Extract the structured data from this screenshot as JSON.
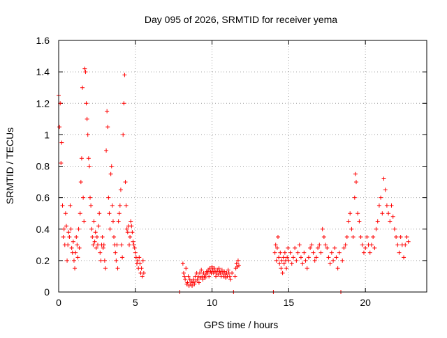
{
  "chart_data": {
    "type": "scatter",
    "title": "Day 095 of 2026, SRMTID for receiver yema",
    "xlabel": "GPS time / hours",
    "ylabel": "SRMTID / TECUs",
    "xlim": [
      0,
      24
    ],
    "ylim": [
      0,
      1.6
    ],
    "xticks": [
      0,
      5,
      10,
      15,
      20
    ],
    "xtick_labels": [
      "0",
      "5",
      "10",
      "15",
      "20"
    ],
    "yticks": [
      0,
      0.2,
      0.4,
      0.6,
      0.8,
      1.0,
      1.2,
      1.4,
      1.6
    ],
    "ytick_labels": [
      "0",
      "0.2",
      "0.4",
      "0.6",
      "0.8",
      "1",
      "1.2",
      "1.4",
      "1.6"
    ],
    "grid": true,
    "marker": "+",
    "series_color": "#ff0000",
    "series": [
      {
        "name": "SRMTID",
        "points": [
          [
            0.0,
            1.25
          ],
          [
            0.05,
            1.05
          ],
          [
            0.1,
            1.2
          ],
          [
            0.15,
            0.82
          ],
          [
            0.2,
            0.95
          ],
          [
            0.25,
            0.55
          ],
          [
            0.3,
            0.35
          ],
          [
            0.35,
            0.4
          ],
          [
            0.4,
            0.3
          ],
          [
            0.45,
            0.5
          ],
          [
            0.5,
            0.42
          ],
          [
            0.55,
            0.2
          ],
          [
            0.6,
            0.3
          ],
          [
            0.65,
            0.38
          ],
          [
            0.7,
            0.35
          ],
          [
            0.75,
            0.55
          ],
          [
            0.8,
            0.4
          ],
          [
            0.85,
            0.28
          ],
          [
            0.9,
            0.25
          ],
          [
            0.95,
            0.32
          ],
          [
            1.0,
            0.2
          ],
          [
            1.05,
            0.15
          ],
          [
            1.1,
            0.25
          ],
          [
            1.15,
            0.35
          ],
          [
            1.2,
            0.3
          ],
          [
            1.25,
            0.22
          ],
          [
            1.3,
            0.4
          ],
          [
            1.35,
            0.28
          ],
          [
            1.4,
            0.5
          ],
          [
            1.45,
            0.7
          ],
          [
            1.5,
            0.85
          ],
          [
            1.55,
            1.3
          ],
          [
            1.6,
            0.6
          ],
          [
            1.65,
            0.45
          ],
          [
            1.7,
            1.42
          ],
          [
            1.75,
            1.4
          ],
          [
            1.8,
            1.2
          ],
          [
            1.85,
            1.1
          ],
          [
            1.9,
            1.0
          ],
          [
            1.95,
            0.85
          ],
          [
            2.0,
            0.8
          ],
          [
            2.05,
            0.6
          ],
          [
            2.1,
            0.55
          ],
          [
            2.15,
            0.4
          ],
          [
            2.2,
            0.35
          ],
          [
            2.25,
            0.3
          ],
          [
            2.3,
            0.45
          ],
          [
            2.35,
            0.32
          ],
          [
            2.4,
            0.38
          ],
          [
            2.45,
            0.28
          ],
          [
            2.5,
            0.35
          ],
          [
            2.55,
            0.3
          ],
          [
            2.6,
            0.42
          ],
          [
            2.65,
            0.5
          ],
          [
            2.7,
            0.25
          ],
          [
            2.75,
            0.2
          ],
          [
            2.8,
            0.3
          ],
          [
            2.85,
            0.35
          ],
          [
            2.9,
            0.28
          ],
          [
            2.95,
            0.3
          ],
          [
            3.0,
            0.2
          ],
          [
            3.05,
            0.15
          ],
          [
            3.1,
            0.9
          ],
          [
            3.15,
            1.15
          ],
          [
            3.2,
            1.05
          ],
          [
            3.25,
            0.6
          ],
          [
            3.3,
            0.5
          ],
          [
            3.35,
            0.4
          ],
          [
            3.4,
            0.75
          ],
          [
            3.45,
            0.8
          ],
          [
            3.5,
            0.55
          ],
          [
            3.55,
            0.45
          ],
          [
            3.6,
            0.35
          ],
          [
            3.65,
            0.3
          ],
          [
            3.7,
            0.25
          ],
          [
            3.75,
            0.2
          ],
          [
            3.8,
            0.3
          ],
          [
            3.85,
            0.15
          ],
          [
            3.9,
            0.45
          ],
          [
            3.95,
            0.5
          ],
          [
            4.0,
            0.55
          ],
          [
            4.05,
            0.65
          ],
          [
            4.1,
            0.3
          ],
          [
            4.15,
            0.22
          ],
          [
            4.2,
            1.0
          ],
          [
            4.25,
            1.2
          ],
          [
            4.3,
            1.38
          ],
          [
            4.35,
            0.7
          ],
          [
            4.4,
            0.55
          ],
          [
            4.45,
            0.4
          ],
          [
            4.5,
            0.38
          ],
          [
            4.55,
            0.42
          ],
          [
            4.6,
            0.3
          ],
          [
            4.65,
            0.35
          ],
          [
            4.7,
            0.45
          ],
          [
            4.75,
            0.42
          ],
          [
            4.8,
            0.38
          ],
          [
            4.85,
            0.32
          ],
          [
            4.9,
            0.3
          ],
          [
            4.95,
            0.28
          ],
          [
            5.0,
            0.25
          ],
          [
            5.05,
            0.22
          ],
          [
            5.1,
            0.18
          ],
          [
            5.15,
            0.2
          ],
          [
            5.2,
            0.15
          ],
          [
            5.25,
            0.22
          ],
          [
            5.3,
            0.18
          ],
          [
            5.35,
            0.12
          ],
          [
            5.4,
            0.15
          ],
          [
            5.45,
            0.1
          ],
          [
            5.5,
            0.2
          ],
          [
            5.55,
            0.12
          ],
          [
            7.9,
            0.0
          ],
          [
            8.1,
            0.18
          ],
          [
            8.15,
            0.12
          ],
          [
            8.2,
            0.1
          ],
          [
            8.25,
            0.08
          ],
          [
            8.3,
            0.15
          ],
          [
            8.35,
            0.05
          ],
          [
            8.4,
            0.06
          ],
          [
            8.45,
            0.1
          ],
          [
            8.5,
            0.04
          ],
          [
            8.55,
            0.08
          ],
          [
            8.6,
            0.05
          ],
          [
            8.65,
            0.07
          ],
          [
            8.7,
            0.04
          ],
          [
            8.75,
            0.06
          ],
          [
            8.8,
            0.08
          ],
          [
            8.85,
            0.05
          ],
          [
            8.9,
            0.1
          ],
          [
            8.95,
            0.07
          ],
          [
            9.0,
            0.12
          ],
          [
            9.05,
            0.08
          ],
          [
            9.1,
            0.1
          ],
          [
            9.15,
            0.06
          ],
          [
            9.2,
            0.12
          ],
          [
            9.25,
            0.09
          ],
          [
            9.3,
            0.14
          ],
          [
            9.35,
            0.1
          ],
          [
            9.4,
            0.08
          ],
          [
            9.45,
            0.12
          ],
          [
            9.5,
            0.1
          ],
          [
            9.55,
            0.09
          ],
          [
            9.6,
            0.11
          ],
          [
            9.65,
            0.13
          ],
          [
            9.7,
            0.12
          ],
          [
            9.75,
            0.14
          ],
          [
            9.8,
            0.1
          ],
          [
            9.85,
            0.15
          ],
          [
            9.9,
            0.13
          ],
          [
            9.95,
            0.12
          ],
          [
            10.0,
            0.16
          ],
          [
            10.05,
            0.14
          ],
          [
            10.1,
            0.12
          ],
          [
            10.15,
            0.15
          ],
          [
            10.2,
            0.13
          ],
          [
            10.25,
            0.1
          ],
          [
            10.3,
            0.12
          ],
          [
            10.35,
            0.14
          ],
          [
            10.4,
            0.11
          ],
          [
            10.45,
            0.15
          ],
          [
            10.5,
            0.13
          ],
          [
            10.55,
            0.12
          ],
          [
            10.6,
            0.1
          ],
          [
            10.65,
            0.14
          ],
          [
            10.7,
            0.12
          ],
          [
            10.75,
            0.1
          ],
          [
            10.8,
            0.13
          ],
          [
            10.85,
            0.11
          ],
          [
            10.9,
            0.09
          ],
          [
            10.95,
            0.12
          ],
          [
            11.0,
            0.1
          ],
          [
            11.05,
            0.14
          ],
          [
            11.1,
            0.12
          ],
          [
            11.15,
            0.1
          ],
          [
            11.2,
            0.08
          ],
          [
            11.3,
            0.12
          ],
          [
            11.4,
            0.0
          ],
          [
            11.5,
            0.1
          ],
          [
            11.55,
            0.15
          ],
          [
            11.6,
            0.18
          ],
          [
            11.65,
            0.16
          ],
          [
            11.7,
            0.2
          ],
          [
            11.75,
            0.17
          ],
          [
            14.0,
            0.0
          ],
          [
            14.1,
            0.25
          ],
          [
            14.15,
            0.3
          ],
          [
            14.2,
            0.2
          ],
          [
            14.25,
            0.28
          ],
          [
            14.3,
            0.35
          ],
          [
            14.35,
            0.22
          ],
          [
            14.4,
            0.18
          ],
          [
            14.45,
            0.25
          ],
          [
            14.5,
            0.15
          ],
          [
            14.55,
            0.2
          ],
          [
            14.6,
            0.12
          ],
          [
            14.65,
            0.22
          ],
          [
            14.7,
            0.18
          ],
          [
            14.75,
            0.25
          ],
          [
            14.8,
            0.2
          ],
          [
            14.85,
            0.15
          ],
          [
            14.9,
            0.22
          ],
          [
            14.95,
            0.28
          ],
          [
            15.0,
            0.2
          ],
          [
            15.1,
            0.25
          ],
          [
            15.2,
            0.18
          ],
          [
            15.3,
            0.22
          ],
          [
            15.4,
            0.28
          ],
          [
            15.5,
            0.2
          ],
          [
            15.6,
            0.25
          ],
          [
            15.7,
            0.3
          ],
          [
            15.8,
            0.22
          ],
          [
            15.9,
            0.18
          ],
          [
            16.0,
            0.25
          ],
          [
            16.1,
            0.2
          ],
          [
            16.2,
            0.15
          ],
          [
            16.3,
            0.22
          ],
          [
            16.4,
            0.28
          ],
          [
            16.5,
            0.3
          ],
          [
            16.6,
            0.25
          ],
          [
            16.7,
            0.2
          ],
          [
            16.8,
            0.22
          ],
          [
            16.9,
            0.28
          ],
          [
            17.0,
            0.3
          ],
          [
            17.1,
            0.25
          ],
          [
            17.2,
            0.4
          ],
          [
            17.3,
            0.35
          ],
          [
            17.4,
            0.3
          ],
          [
            17.5,
            0.28
          ],
          [
            17.6,
            0.22
          ],
          [
            17.7,
            0.18
          ],
          [
            17.8,
            0.25
          ],
          [
            17.9,
            0.2
          ],
          [
            18.0,
            0.28
          ],
          [
            18.1,
            0.22
          ],
          [
            18.2,
            0.15
          ],
          [
            18.3,
            0.25
          ],
          [
            18.4,
            0.0
          ],
          [
            18.5,
            0.2
          ],
          [
            18.6,
            0.28
          ],
          [
            18.7,
            0.3
          ],
          [
            18.8,
            0.35
          ],
          [
            18.9,
            0.45
          ],
          [
            19.0,
            0.5
          ],
          [
            19.1,
            0.4
          ],
          [
            19.2,
            0.35
          ],
          [
            19.3,
            0.6
          ],
          [
            19.35,
            0.75
          ],
          [
            19.4,
            0.7
          ],
          [
            19.5,
            0.5
          ],
          [
            19.6,
            0.45
          ],
          [
            19.7,
            0.35
          ],
          [
            19.8,
            0.3
          ],
          [
            19.9,
            0.25
          ],
          [
            20.0,
            0.28
          ],
          [
            20.1,
            0.35
          ],
          [
            20.2,
            0.3
          ],
          [
            20.3,
            0.25
          ],
          [
            20.4,
            0.3
          ],
          [
            20.5,
            0.35
          ],
          [
            20.6,
            0.28
          ],
          [
            20.7,
            0.4
          ],
          [
            20.8,
            0.45
          ],
          [
            20.9,
            0.55
          ],
          [
            21.0,
            0.6
          ],
          [
            21.1,
            0.5
          ],
          [
            21.2,
            0.72
          ],
          [
            21.3,
            0.65
          ],
          [
            21.4,
            0.55
          ],
          [
            21.5,
            0.5
          ],
          [
            21.6,
            0.45
          ],
          [
            21.7,
            0.55
          ],
          [
            21.8,
            0.48
          ],
          [
            21.9,
            0.4
          ],
          [
            22.0,
            0.35
          ],
          [
            22.1,
            0.3
          ],
          [
            22.2,
            0.25
          ],
          [
            22.3,
            0.35
          ],
          [
            22.4,
            0.3
          ],
          [
            22.5,
            0.22
          ],
          [
            22.6,
            0.3
          ],
          [
            22.7,
            0.35
          ],
          [
            22.8,
            0.32
          ]
        ]
      }
    ]
  }
}
